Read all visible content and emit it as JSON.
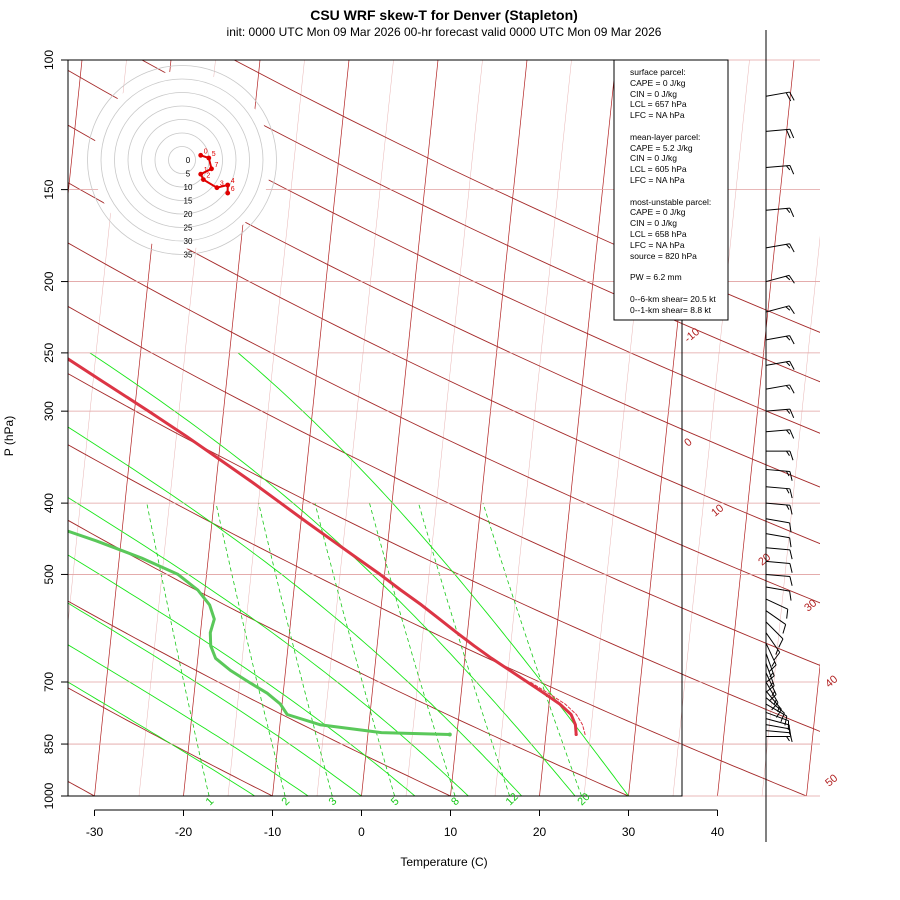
{
  "title": "CSU WRF skew-T for Denver (Stapleton)",
  "subtitle": "init: 0000 UTC Mon 09 Mar 2026    00-hr forecast valid 0000 UTC Mon 09 Mar 2026",
  "colors": {
    "temperature": "#dc3545",
    "dewpoint": "#5ac85a",
    "isotherm": "#b22222",
    "mixing_ratio": "#19c819",
    "moist_adiabat": "#19e619"
  },
  "chart_data": {
    "type": "line",
    "title": "CSU WRF skew-T for Denver (Stapleton)",
    "xlabel": "Temperature (C)",
    "ylabel": "P (hPa)",
    "x_ticks": [
      -30,
      -20,
      -10,
      0,
      10,
      20,
      30,
      40
    ],
    "y_ticks": [
      100,
      150,
      200,
      250,
      300,
      400,
      500,
      700,
      850,
      1000
    ],
    "y_scale": "log",
    "ylim": [
      1000,
      100
    ],
    "isotherm_labels": [
      "-10",
      "0",
      "10",
      "20",
      "30",
      "40",
      "50"
    ],
    "mixing_ratio_labels": [
      "1",
      "2",
      "3",
      "5",
      "8",
      "12",
      "20"
    ],
    "series": [
      {
        "name": "temperature",
        "points": [
          [
            825,
            23.4
          ],
          [
            800,
            23.2
          ],
          [
            775,
            22.6
          ],
          [
            750,
            21.2
          ],
          [
            725,
            19.3
          ],
          [
            700,
            17.3
          ],
          [
            675,
            15.2
          ],
          [
            650,
            13.0
          ],
          [
            625,
            10.9
          ],
          [
            600,
            8.8
          ],
          [
            575,
            6.7
          ],
          [
            550,
            4.5
          ],
          [
            525,
            2.0
          ],
          [
            500,
            -0.5
          ],
          [
            475,
            -3.3
          ],
          [
            450,
            -6.2
          ],
          [
            425,
            -9.3
          ],
          [
            400,
            -12.5
          ],
          [
            375,
            -15.9
          ],
          [
            350,
            -19.7
          ],
          [
            325,
            -23.8
          ],
          [
            300,
            -28.4
          ],
          [
            275,
            -33.6
          ],
          [
            250,
            -39.2
          ],
          [
            225,
            -45.6
          ],
          [
            210,
            -50.8
          ],
          [
            200,
            -52.6
          ],
          [
            190,
            -53.1
          ],
          [
            180,
            -53.6
          ],
          [
            170,
            -53.7
          ],
          [
            160,
            -54.2
          ],
          [
            150,
            -54.8
          ],
          [
            140,
            -56.8
          ],
          [
            130,
            -58.3
          ],
          [
            120,
            -60.3
          ],
          [
            110,
            -62.2
          ],
          [
            100,
            -62.7
          ]
        ]
      },
      {
        "name": "dewpoint",
        "points": [
          [
            825,
            9.2
          ],
          [
            820,
            1.5
          ],
          [
            800,
            -5.5
          ],
          [
            775,
            -9.3
          ],
          [
            750,
            -10.2
          ],
          [
            725,
            -11.8
          ],
          [
            700,
            -14.0
          ],
          [
            675,
            -16.2
          ],
          [
            650,
            -18.0
          ],
          [
            625,
            -18.7
          ],
          [
            600,
            -18.9
          ],
          [
            575,
            -18.6
          ],
          [
            550,
            -19.3
          ],
          [
            525,
            -20.8
          ],
          [
            500,
            -23.2
          ],
          [
            475,
            -27.5
          ],
          [
            450,
            -32.8
          ],
          [
            425,
            -39.0
          ],
          [
            400,
            -45.4
          ],
          [
            375,
            -48.8
          ],
          [
            350,
            -50.8
          ],
          [
            325,
            -47.4
          ],
          [
            300,
            -43.5
          ],
          [
            275,
            -45.7
          ],
          [
            250,
            -49.6
          ],
          [
            225,
            -54.6
          ],
          [
            200,
            -59.0
          ],
          [
            190,
            -61.0
          ],
          [
            180,
            -62.5
          ]
        ]
      },
      {
        "name": "virtual temperature",
        "dashed": true,
        "points": [
          [
            825,
            24.4
          ],
          [
            800,
            24.0
          ],
          [
            775,
            23.2
          ],
          [
            750,
            21.8
          ],
          [
            725,
            19.8
          ],
          [
            700,
            17.6
          ]
        ]
      }
    ]
  },
  "legend": {
    "surface_header": "surface parcel:",
    "surface_cape": "CAPE = 0 J/kg",
    "surface_cin": "CIN = 0 J/kg",
    "surface_lcl": "LCL = 657 hPa",
    "surface_lfc": "LFC = NA hPa",
    "mean_header": "mean-layer parcel:",
    "mean_cape": "CAPE = 5.2 J/kg",
    "mean_cin": "CIN = 0 J/kg",
    "mean_lcl": "LCL = 605 hPa",
    "mean_lfc": "LFC = NA hPa",
    "mu_header": "most-unstable parcel:",
    "mu_cape": "CAPE = 0 J/kg",
    "mu_cin": "CIN = 0 J/kg",
    "mu_lcl": "LCL = 658 hPa",
    "mu_lfc": "LFC = NA hPa",
    "mu_source": "source = 820 hPa",
    "pw": "PW =  6.2 mm",
    "shear_06": "0--6-km shear= 20.5 kt",
    "shear_01": "0--1-km shear= 8.8 kt"
  },
  "hodograph": {
    "ring_labels": [
      "5",
      "10",
      "15",
      "20",
      "25",
      "30",
      "35"
    ],
    "center_label": "0",
    "trace": [
      {
        "u": 1,
        "v": 1,
        "label": "0"
      },
      {
        "u": 4,
        "v": 0,
        "label": "5"
      },
      {
        "u": 5,
        "v": -4,
        "label": "7"
      },
      {
        "u": 1,
        "v": -6,
        "label": "1"
      },
      {
        "u": 2,
        "v": -8,
        "label": "2"
      },
      {
        "u": 7,
        "v": -11,
        "label": "3"
      },
      {
        "u": 11,
        "v": -10,
        "label": "4"
      },
      {
        "u": 11,
        "v": -13,
        "label": "6"
      }
    ]
  },
  "wind_barbs": [
    {
      "p": 830,
      "speed": 7,
      "dir": 90
    },
    {
      "p": 815,
      "speed": 8,
      "dir": 95
    },
    {
      "p": 800,
      "speed": 8,
      "dir": 100
    },
    {
      "p": 785,
      "speed": 9,
      "dir": 105
    },
    {
      "p": 770,
      "speed": 9,
      "dir": 110
    },
    {
      "p": 750,
      "speed": 11,
      "dir": 120
    },
    {
      "p": 735,
      "speed": 12,
      "dir": 130
    },
    {
      "p": 720,
      "speed": 13,
      "dir": 140
    },
    {
      "p": 700,
      "speed": 13,
      "dir": 150
    },
    {
      "p": 680,
      "speed": 13,
      "dir": 155
    },
    {
      "p": 660,
      "speed": 13,
      "dir": 160
    },
    {
      "p": 640,
      "speed": 14,
      "dir": 160
    },
    {
      "p": 620,
      "speed": 13,
      "dir": 155
    },
    {
      "p": 600,
      "speed": 13,
      "dir": 145
    },
    {
      "p": 580,
      "speed": 12,
      "dir": 135
    },
    {
      "p": 560,
      "speed": 12,
      "dir": 125
    },
    {
      "p": 540,
      "speed": 12,
      "dir": 115
    },
    {
      "p": 520,
      "speed": 12,
      "dir": 100
    },
    {
      "p": 500,
      "speed": 12,
      "dir": 95
    },
    {
      "p": 480,
      "speed": 12,
      "dir": 95
    },
    {
      "p": 460,
      "speed": 12,
      "dir": 95
    },
    {
      "p": 440,
      "speed": 12,
      "dir": 100
    },
    {
      "p": 420,
      "speed": 12,
      "dir": 100
    },
    {
      "p": 400,
      "speed": 14,
      "dir": 95
    },
    {
      "p": 380,
      "speed": 14,
      "dir": 95
    },
    {
      "p": 360,
      "speed": 14,
      "dir": 95
    },
    {
      "p": 340,
      "speed": 14,
      "dir": 90
    },
    {
      "p": 320,
      "speed": 14,
      "dir": 85
    },
    {
      "p": 300,
      "speed": 14,
      "dir": 85
    },
    {
      "p": 280,
      "speed": 14,
      "dir": 80
    },
    {
      "p": 260,
      "speed": 14,
      "dir": 80
    },
    {
      "p": 240,
      "speed": 15,
      "dir": 80
    },
    {
      "p": 220,
      "speed": 15,
      "dir": 75
    },
    {
      "p": 200,
      "speed": 15,
      "dir": 75
    },
    {
      "p": 180,
      "speed": 16,
      "dir": 80
    },
    {
      "p": 160,
      "speed": 17,
      "dir": 85
    },
    {
      "p": 140,
      "speed": 17,
      "dir": 85
    },
    {
      "p": 125,
      "speed": 18,
      "dir": 85
    },
    {
      "p": 112,
      "speed": 18,
      "dir": 80
    }
  ]
}
